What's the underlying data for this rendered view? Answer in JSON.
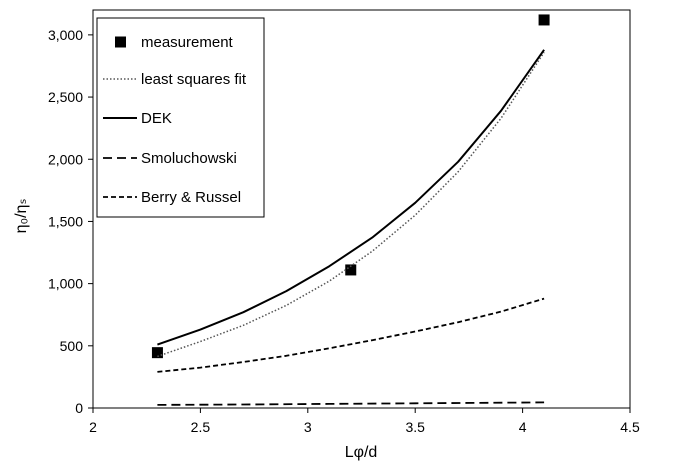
{
  "chart_data": {
    "type": "scatter",
    "title": "",
    "xlabel": "Lφ/d",
    "ylabel": "η₀/ηₛ",
    "xlim": [
      2,
      4.5
    ],
    "ylim": [
      0,
      3200
    ],
    "x_ticks": [
      {
        "value": 2,
        "label": "2"
      },
      {
        "value": 2.5,
        "label": "2.5"
      },
      {
        "value": 3,
        "label": "3"
      },
      {
        "value": 3.5,
        "label": "3.5"
      },
      {
        "value": 4,
        "label": "4"
      },
      {
        "value": 4.5,
        "label": "4.5"
      }
    ],
    "y_ticks": [
      {
        "value": 0,
        "label": "0"
      },
      {
        "value": 500,
        "label": "500"
      },
      {
        "value": 1000,
        "label": "1,000"
      },
      {
        "value": 1500,
        "label": "1,500"
      },
      {
        "value": 2000,
        "label": "2,000"
      },
      {
        "value": 2500,
        "label": "2,500"
      },
      {
        "value": 3000,
        "label": "3,000"
      }
    ],
    "grid": false,
    "legend_position": "top-left",
    "series": [
      {
        "name": "measurement",
        "style": "markers",
        "marker": "square",
        "color": "#000000",
        "points": [
          [
            2.3,
            445
          ],
          [
            3.2,
            1110
          ],
          [
            4.1,
            3120
          ]
        ]
      },
      {
        "name": "least squares fit",
        "style": "dotted",
        "color": "#555555",
        "points": [
          [
            2.3,
            415
          ],
          [
            2.5,
            535
          ],
          [
            2.7,
            665
          ],
          [
            2.9,
            825
          ],
          [
            3.1,
            1020
          ],
          [
            3.3,
            1260
          ],
          [
            3.5,
            1550
          ],
          [
            3.7,
            1900
          ],
          [
            3.9,
            2330
          ],
          [
            4.1,
            2860
          ]
        ]
      },
      {
        "name": "DEK",
        "style": "solid",
        "color": "#000000",
        "points": [
          [
            2.3,
            510
          ],
          [
            2.5,
            630
          ],
          [
            2.7,
            770
          ],
          [
            2.9,
            940
          ],
          [
            3.1,
            1140
          ],
          [
            3.3,
            1370
          ],
          [
            3.5,
            1650
          ],
          [
            3.7,
            1980
          ],
          [
            3.9,
            2390
          ],
          [
            4.1,
            2880
          ]
        ]
      },
      {
        "name": "Smoluchowski",
        "style": "long-dash",
        "color": "#000000",
        "points": [
          [
            2.3,
            25
          ],
          [
            2.7,
            28
          ],
          [
            3.1,
            33
          ],
          [
            3.5,
            38
          ],
          [
            4.1,
            45
          ]
        ]
      },
      {
        "name": "Berry & Russel",
        "style": "short-dash",
        "color": "#000000",
        "points": [
          [
            2.3,
            290
          ],
          [
            2.5,
            325
          ],
          [
            2.7,
            370
          ],
          [
            2.9,
            420
          ],
          [
            3.1,
            480
          ],
          [
            3.3,
            545
          ],
          [
            3.5,
            615
          ],
          [
            3.7,
            690
          ],
          [
            3.9,
            775
          ],
          [
            4.1,
            880
          ]
        ]
      }
    ]
  }
}
